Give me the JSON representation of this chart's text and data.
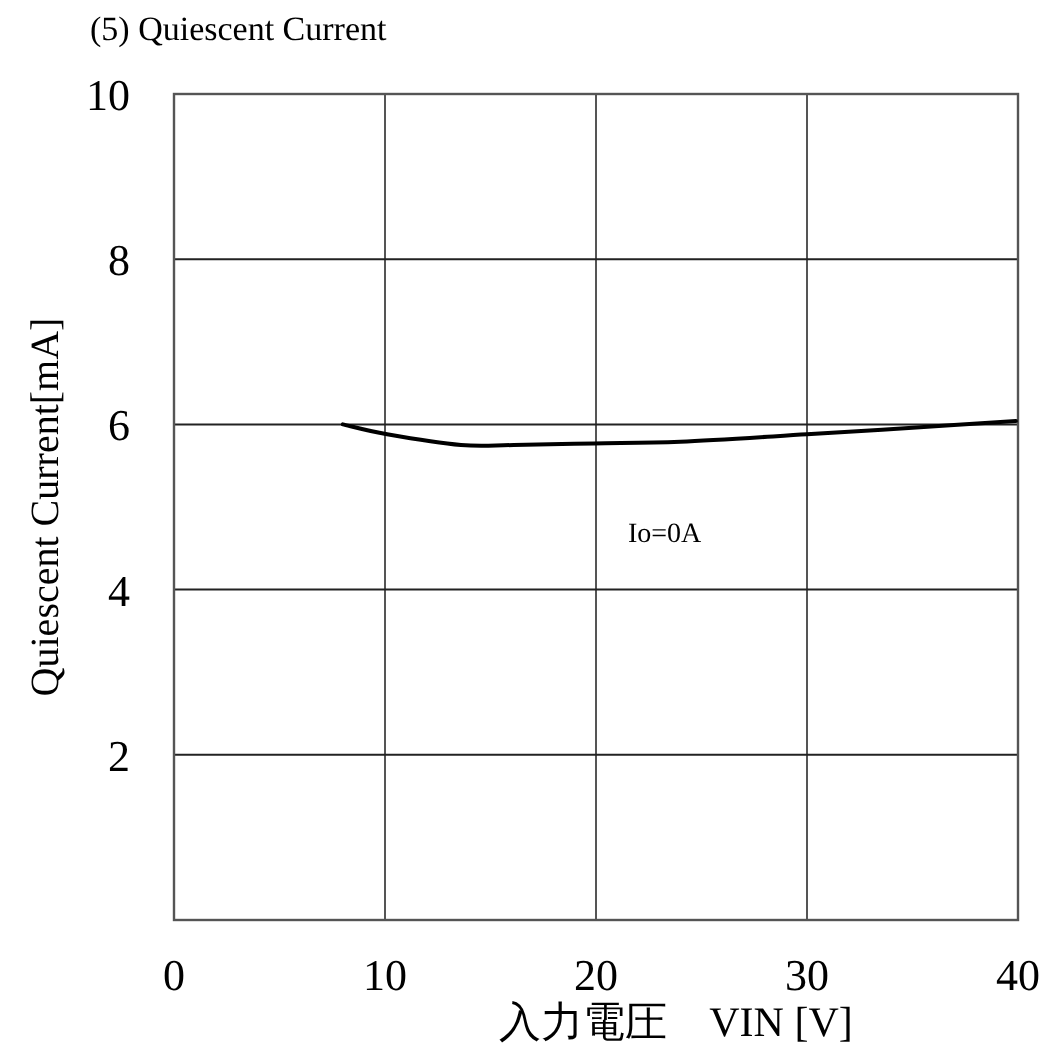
{
  "chart_data": {
    "type": "line",
    "title": "(5) Quiescent Current",
    "xlabel": "入力電圧　VIN [V]",
    "ylabel": "Quiescent Current[mA]",
    "annotations": [
      "Io=0A"
    ],
    "x": [
      8.0,
      10.1,
      13.6,
      16.1,
      19.9,
      24.0,
      30.0,
      35.0,
      39.9
    ],
    "values": [
      6.0,
      5.88,
      5.75,
      5.75,
      5.77,
      5.79,
      5.88,
      5.96,
      6.04
    ],
    "color": "#000000",
    "xlim": [
      0,
      40
    ],
    "ylim": [
      0,
      10
    ],
    "xticks": [
      0,
      10,
      20,
      30,
      40
    ],
    "yticks": [
      2,
      4,
      6,
      8,
      10
    ],
    "grid": true
  }
}
